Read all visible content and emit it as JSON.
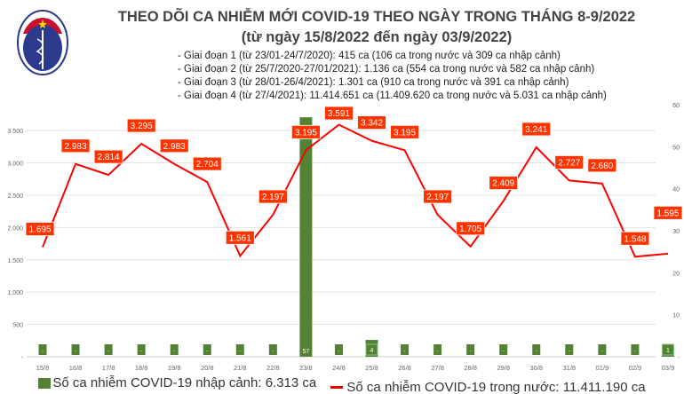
{
  "header": {
    "logo_text": "BỘ Y TẾ MINISTRY OF HEALTH",
    "title": "THEO DÕI CA NHIỄM MỚI COVID-19 THEO NGÀY TRONG THÁNG 8-9/2022",
    "subtitle": "(từ ngày 15/8/2022 đến ngày 03/9/2022)",
    "notes": [
      "- Giai đoạn 1 (từ 23/01-24/7/2020): 415 ca (106 ca trong nước và 309 ca nhập cảnh)",
      "- Giai đoạn 2 (từ 25/7/2020-27/01/2021): 1.136 ca (554 ca trong nước và 582 ca nhập cảnh)",
      "- Giai đoạn 3 (từ 28/01-26/4/2021): 1.301 ca (910 ca trong nước và 391 ca nhập cảnh)",
      "- Giai đoạn 4 (từ 27/4/2021): 11.414.651 ca (11.409.620 ca trong nước và 5.031 ca nhập cảnh)"
    ]
  },
  "chart_data": {
    "type": "bar+line",
    "categories": [
      "15/8",
      "16/8",
      "17/8",
      "18/8",
      "19/8",
      "20/8",
      "21/8",
      "22/8",
      "23/8",
      "24/8",
      "25/8",
      "26/8",
      "27/8",
      "28/8",
      "29/8",
      "30/8",
      "31/8",
      "01/9",
      "02/9",
      "03/9"
    ],
    "series": [
      {
        "name": "Số ca nhiễm COVID-19 nhập cảnh: 6.313 ca",
        "type": "bar",
        "axis": "right",
        "color": "#548235",
        "values": [
          0,
          0,
          0,
          0,
          0,
          0,
          0,
          0,
          57,
          0,
          4,
          0,
          0,
          0,
          0,
          0,
          0,
          0,
          0,
          1
        ]
      },
      {
        "name": "Số ca nhiễm COVID-19 trong nước: 11.411.190 ca",
        "type": "line",
        "axis": "left",
        "color": "#ff0000",
        "values": [
          1695,
          2983,
          2814,
          3295,
          2983,
          2704,
          1561,
          2197,
          3195,
          3591,
          3342,
          3195,
          2197,
          1705,
          2409,
          3241,
          2727,
          2680,
          1548,
          1595
        ]
      }
    ],
    "left_axis": {
      "ticks": [
        "-",
        "500",
        "1.000",
        "1.500",
        "2.000",
        "2.500",
        "3.000",
        "3.500"
      ],
      "values": [
        0,
        500,
        1000,
        1500,
        2000,
        2500,
        3000,
        3500
      ],
      "range": [
        0,
        3900
      ]
    },
    "right_axis": {
      "ticks": [
        "-",
        "10",
        "20",
        "30",
        "40",
        "50",
        "60"
      ],
      "values": [
        0,
        10,
        20,
        30,
        40,
        50,
        60
      ],
      "range": [
        0,
        60
      ]
    },
    "line_labels": [
      "1.695",
      "2.983",
      "2.814",
      "3.295",
      "2.983",
      "2.704",
      "1.561",
      "2.197",
      "3.195",
      "3.591",
      "3.342",
      "3.195",
      "2.197",
      "1.705",
      "2.409",
      "3.241",
      "2.727",
      "2.680",
      "1.548",
      "1.595"
    ],
    "bar_labels": [
      "-",
      "-",
      "-",
      "-",
      "-",
      "-",
      "-",
      "-",
      "57",
      "-",
      "4",
      "-",
      "-",
      "-",
      "-",
      "-",
      "-",
      "-",
      "-",
      "1"
    ],
    "grid": true,
    "legend": "bottom"
  }
}
